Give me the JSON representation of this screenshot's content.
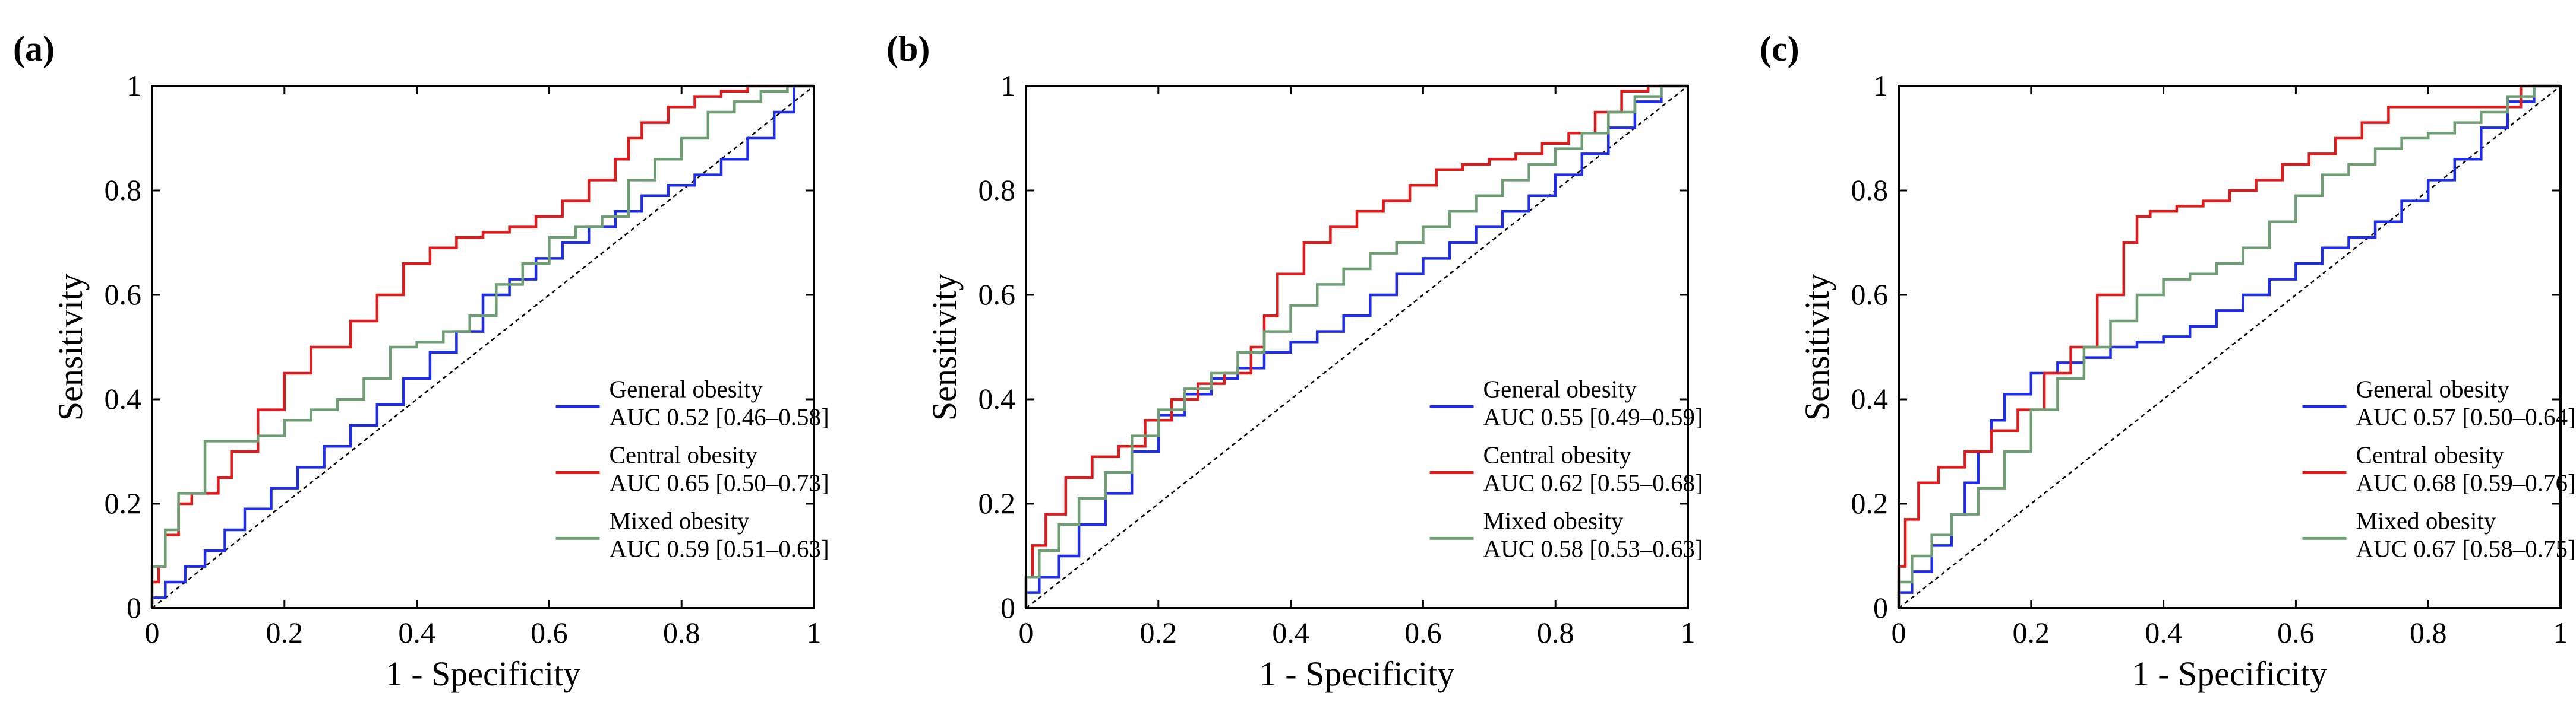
{
  "colors": {
    "general": "#1f2ee6",
    "central": "#e01b1b",
    "mixed": "#6f9e74",
    "axis": "#000000",
    "reference": "#000000"
  },
  "chart_data": [
    {
      "panel_label": "(a)",
      "type": "line",
      "xlabel": "1 - Specificity",
      "ylabel": "Sensitivity",
      "xlim": [
        0,
        1
      ],
      "ylim": [
        0,
        1
      ],
      "xticks": [
        "0",
        "0.2",
        "0.4",
        "0.6",
        "0.8",
        "1"
      ],
      "yticks": [
        "0",
        "0.2",
        "0.4",
        "0.6",
        "0.8",
        "1"
      ],
      "grid": false,
      "legend_position": "bottom-right",
      "series": [
        {
          "key": "general",
          "name": "General obesity",
          "auc_label": "AUC 0.52 [0.46–0.58]",
          "x": [
            0,
            0.02,
            0.05,
            0.08,
            0.11,
            0.14,
            0.18,
            0.22,
            0.26,
            0.3,
            0.34,
            0.38,
            0.42,
            0.46,
            0.5,
            0.54,
            0.58,
            0.62,
            0.66,
            0.7,
            0.74,
            0.78,
            0.82,
            0.86,
            0.9,
            0.94,
            0.97,
            1
          ],
          "y": [
            0,
            0.02,
            0.05,
            0.08,
            0.11,
            0.15,
            0.19,
            0.23,
            0.27,
            0.31,
            0.35,
            0.39,
            0.44,
            0.49,
            0.53,
            0.6,
            0.63,
            0.67,
            0.7,
            0.73,
            0.76,
            0.79,
            0.81,
            0.83,
            0.86,
            0.9,
            0.95,
            1
          ]
        },
        {
          "key": "central",
          "name": "Central obesity",
          "auc_label": "AUC 0.65 [0.50–0.73]",
          "x": [
            0,
            0.01,
            0.02,
            0.04,
            0.06,
            0.1,
            0.12,
            0.16,
            0.2,
            0.24,
            0.3,
            0.34,
            0.38,
            0.42,
            0.46,
            0.5,
            0.54,
            0.58,
            0.62,
            0.66,
            0.7,
            0.72,
            0.74,
            0.78,
            0.82,
            0.86,
            0.9,
            0.93,
            0.96,
            1
          ],
          "y": [
            0,
            0.05,
            0.08,
            0.14,
            0.2,
            0.22,
            0.25,
            0.3,
            0.38,
            0.45,
            0.5,
            0.55,
            0.6,
            0.66,
            0.69,
            0.71,
            0.72,
            0.73,
            0.75,
            0.78,
            0.82,
            0.86,
            0.9,
            0.93,
            0.96,
            0.98,
            0.99,
            1,
            1,
            1
          ]
        },
        {
          "key": "mixed",
          "name": "Mixed obesity",
          "auc_label": "AUC 0.59 [0.51–0.63]",
          "x": [
            0,
            0.02,
            0.04,
            0.08,
            0.12,
            0.16,
            0.2,
            0.24,
            0.28,
            0.32,
            0.36,
            0.4,
            0.44,
            0.48,
            0.52,
            0.56,
            0.6,
            0.64,
            0.68,
            0.72,
            0.76,
            0.8,
            0.84,
            0.88,
            0.92,
            0.96,
            1
          ],
          "y": [
            0,
            0.08,
            0.15,
            0.22,
            0.32,
            0.32,
            0.33,
            0.36,
            0.38,
            0.4,
            0.44,
            0.5,
            0.51,
            0.53,
            0.56,
            0.62,
            0.66,
            0.71,
            0.73,
            0.75,
            0.82,
            0.86,
            0.9,
            0.95,
            0.97,
            0.99,
            1
          ]
        }
      ]
    },
    {
      "panel_label": "(b)",
      "type": "line",
      "xlabel": "1 - Specificity",
      "ylabel": "Sensitivity",
      "xlim": [
        0,
        1
      ],
      "ylim": [
        0,
        1
      ],
      "xticks": [
        "0",
        "0.2",
        "0.4",
        "0.6",
        "0.8",
        "1"
      ],
      "yticks": [
        "0",
        "0.2",
        "0.4",
        "0.6",
        "0.8",
        "1"
      ],
      "grid": false,
      "legend_position": "bottom-right",
      "series": [
        {
          "key": "general",
          "name": "General obesity",
          "auc_label": "AUC 0.55 [0.49–0.59]",
          "x": [
            0,
            0.02,
            0.05,
            0.08,
            0.12,
            0.16,
            0.2,
            0.24,
            0.28,
            0.32,
            0.36,
            0.4,
            0.44,
            0.48,
            0.52,
            0.56,
            0.6,
            0.64,
            0.68,
            0.72,
            0.76,
            0.8,
            0.84,
            0.88,
            0.92,
            0.96,
            1
          ],
          "y": [
            0,
            0.03,
            0.06,
            0.1,
            0.16,
            0.22,
            0.3,
            0.37,
            0.41,
            0.44,
            0.46,
            0.49,
            0.51,
            0.53,
            0.56,
            0.6,
            0.64,
            0.67,
            0.7,
            0.73,
            0.76,
            0.79,
            0.83,
            0.87,
            0.92,
            0.97,
            1
          ]
        },
        {
          "key": "central",
          "name": "Central obesity",
          "auc_label": "AUC 0.62 [0.55–0.68]",
          "x": [
            0,
            0.01,
            0.03,
            0.06,
            0.1,
            0.14,
            0.18,
            0.22,
            0.26,
            0.3,
            0.34,
            0.36,
            0.38,
            0.42,
            0.46,
            0.5,
            0.54,
            0.58,
            0.62,
            0.66,
            0.7,
            0.74,
            0.78,
            0.82,
            0.86,
            0.9,
            0.94,
            0.97,
            1
          ],
          "y": [
            0,
            0.06,
            0.12,
            0.18,
            0.25,
            0.29,
            0.31,
            0.36,
            0.4,
            0.43,
            0.45,
            0.5,
            0.56,
            0.64,
            0.7,
            0.73,
            0.76,
            0.78,
            0.81,
            0.84,
            0.85,
            0.86,
            0.87,
            0.89,
            0.91,
            0.95,
            0.99,
            1,
            1
          ]
        },
        {
          "key": "mixed",
          "name": "Mixed obesity",
          "auc_label": "AUC 0.58 [0.53–0.63]",
          "x": [
            0,
            0.02,
            0.05,
            0.08,
            0.12,
            0.16,
            0.2,
            0.24,
            0.28,
            0.32,
            0.36,
            0.4,
            0.44,
            0.48,
            0.52,
            0.56,
            0.6,
            0.64,
            0.68,
            0.72,
            0.76,
            0.8,
            0.84,
            0.88,
            0.92,
            0.96,
            1
          ],
          "y": [
            0,
            0.06,
            0.11,
            0.16,
            0.21,
            0.26,
            0.33,
            0.38,
            0.42,
            0.45,
            0.49,
            0.53,
            0.58,
            0.62,
            0.65,
            0.68,
            0.7,
            0.73,
            0.76,
            0.79,
            0.82,
            0.85,
            0.88,
            0.91,
            0.95,
            0.98,
            1
          ]
        }
      ]
    },
    {
      "panel_label": "(c)",
      "type": "line",
      "xlabel": "1 - Specificity",
      "ylabel": "Sensitivity",
      "xlim": [
        0,
        1
      ],
      "ylim": [
        0,
        1
      ],
      "xticks": [
        "0",
        "0.2",
        "0.4",
        "0.6",
        "0.8",
        "1"
      ],
      "yticks": [
        "0",
        "0.2",
        "0.4",
        "0.6",
        "0.8",
        "1"
      ],
      "grid": false,
      "legend_position": "bottom-right",
      "series": [
        {
          "key": "general",
          "name": "General obesity",
          "auc_label": "AUC 0.57 [0.50–0.64]",
          "x": [
            0,
            0.02,
            0.05,
            0.08,
            0.1,
            0.12,
            0.14,
            0.16,
            0.2,
            0.24,
            0.28,
            0.32,
            0.36,
            0.4,
            0.44,
            0.48,
            0.52,
            0.56,
            0.6,
            0.64,
            0.68,
            0.72,
            0.76,
            0.8,
            0.84,
            0.88,
            0.92,
            0.96,
            1
          ],
          "y": [
            0,
            0.03,
            0.07,
            0.12,
            0.18,
            0.24,
            0.3,
            0.36,
            0.41,
            0.45,
            0.47,
            0.48,
            0.5,
            0.51,
            0.52,
            0.54,
            0.57,
            0.6,
            0.63,
            0.66,
            0.69,
            0.71,
            0.74,
            0.78,
            0.82,
            0.86,
            0.92,
            0.97,
            1
          ]
        },
        {
          "key": "central",
          "name": "Central obesity",
          "auc_label": "AUC 0.68 [0.59–0.76]",
          "x": [
            0,
            0.01,
            0.03,
            0.06,
            0.1,
            0.14,
            0.18,
            0.22,
            0.26,
            0.3,
            0.34,
            0.36,
            0.38,
            0.42,
            0.46,
            0.5,
            0.54,
            0.58,
            0.62,
            0.66,
            0.7,
            0.74,
            0.78,
            0.82,
            0.86,
            0.9,
            0.94,
            0.97,
            1
          ],
          "y": [
            0,
            0.08,
            0.17,
            0.24,
            0.27,
            0.3,
            0.34,
            0.38,
            0.45,
            0.5,
            0.6,
            0.7,
            0.75,
            0.76,
            0.77,
            0.78,
            0.8,
            0.82,
            0.85,
            0.87,
            0.9,
            0.93,
            0.96,
            0.96,
            0.96,
            0.96,
            0.96,
            1,
            1
          ]
        },
        {
          "key": "mixed",
          "name": "Mixed obesity",
          "auc_label": "AUC 0.67 [0.58–0.75]",
          "x": [
            0,
            0.02,
            0.05,
            0.08,
            0.12,
            0.16,
            0.2,
            0.24,
            0.28,
            0.32,
            0.36,
            0.4,
            0.44,
            0.48,
            0.52,
            0.56,
            0.6,
            0.64,
            0.68,
            0.72,
            0.76,
            0.8,
            0.84,
            0.88,
            0.92,
            0.96,
            1
          ],
          "y": [
            0,
            0.05,
            0.1,
            0.14,
            0.18,
            0.23,
            0.3,
            0.38,
            0.44,
            0.5,
            0.55,
            0.6,
            0.63,
            0.64,
            0.66,
            0.69,
            0.74,
            0.79,
            0.83,
            0.85,
            0.88,
            0.9,
            0.91,
            0.93,
            0.95,
            0.98,
            1
          ]
        }
      ]
    }
  ]
}
